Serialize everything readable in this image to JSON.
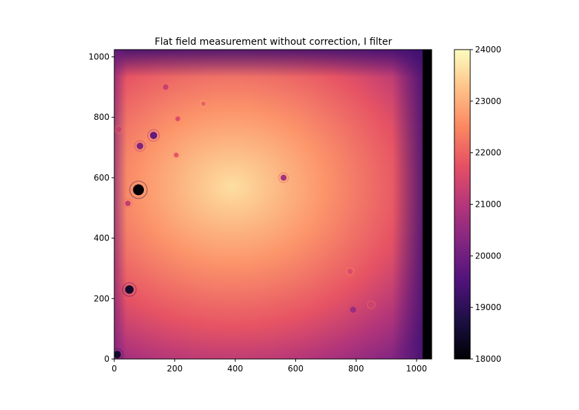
{
  "chart_data": {
    "type": "heatmap",
    "title": "Flat field measurement without correction, I filter",
    "xlabel": "",
    "ylabel": "",
    "xlim": [
      0,
      1050
    ],
    "ylim": [
      0,
      1024
    ],
    "x_ticks": [
      0,
      200,
      400,
      600,
      800,
      1000
    ],
    "y_ticks": [
      0,
      200,
      400,
      600,
      800,
      1000
    ],
    "colormap": "magma",
    "colorbar": {
      "range": [
        18000,
        24000
      ],
      "ticks": [
        18000,
        19000,
        20000,
        21000,
        22000,
        23000,
        24000
      ],
      "stops": [
        "#000004",
        "#1c1044",
        "#4f127b",
        "#812581",
        "#b5367a",
        "#e55064",
        "#fb8761",
        "#fec287",
        "#fcfdbf"
      ]
    },
    "field": {
      "peak_value": 23600,
      "peak_at": [
        390,
        570
      ],
      "edge_value": 20300,
      "dark_column_from_x": 1020,
      "dark_column_value": 18000
    },
    "dark_spots": [
      {
        "x": 80,
        "y": 560,
        "r": 18,
        "value": 18000
      },
      {
        "x": 50,
        "y": 230,
        "r": 14,
        "value": 18500
      },
      {
        "x": 130,
        "y": 740,
        "r": 12,
        "value": 19800
      },
      {
        "x": 85,
        "y": 705,
        "r": 11,
        "value": 20200
      },
      {
        "x": 560,
        "y": 600,
        "r": 10,
        "value": 20800
      },
      {
        "x": 790,
        "y": 163,
        "r": 10,
        "value": 20600
      },
      {
        "x": 45,
        "y": 515,
        "r": 9,
        "value": 21200
      },
      {
        "x": 170,
        "y": 900,
        "r": 9,
        "value": 21300
      },
      {
        "x": 850,
        "y": 180,
        "r": 8,
        "value": 21400
      },
      {
        "x": 205,
        "y": 675,
        "r": 8,
        "value": 21800
      },
      {
        "x": 15,
        "y": 760,
        "r": 8,
        "value": 21300
      },
      {
        "x": 780,
        "y": 290,
        "r": 8,
        "value": 21600
      },
      {
        "x": 210,
        "y": 795,
        "r": 8,
        "value": 21600
      },
      {
        "x": 295,
        "y": 845,
        "r": 7,
        "value": 22000
      },
      {
        "x": 10,
        "y": 15,
        "r": 12,
        "value": 18500
      }
    ]
  }
}
